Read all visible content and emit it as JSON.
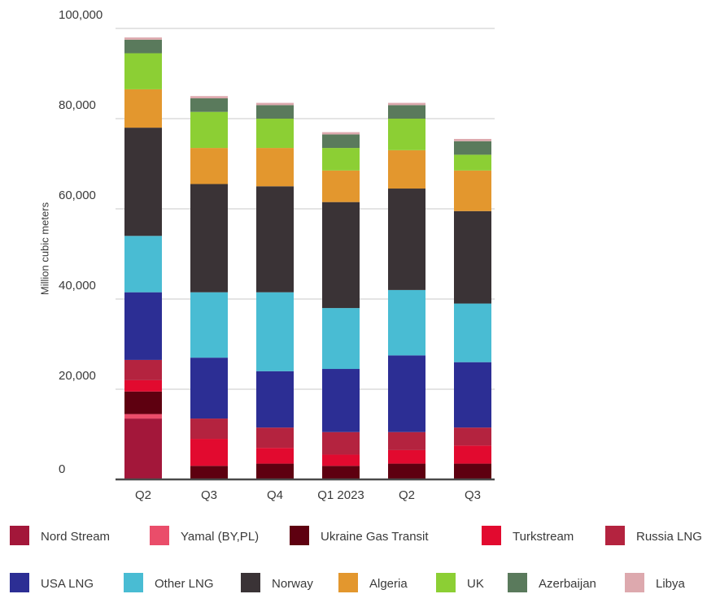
{
  "chart_data": {
    "type": "bar",
    "stacked": true,
    "title": "",
    "xlabel": "",
    "ylabel": "Million cubic meters",
    "ylim": [
      0,
      100000
    ],
    "yticks": [
      0,
      20000,
      40000,
      60000,
      80000,
      100000
    ],
    "ytick_labels": [
      "0",
      "20,000",
      "40,000",
      "60,000",
      "80,000",
      "100,000"
    ],
    "grid": true,
    "legend_position": "bottom",
    "categories": [
      "Q2",
      "Q3",
      "Q4",
      "Q1 2023",
      "Q2",
      "Q3"
    ],
    "series": [
      {
        "name": "Nord Stream",
        "color": "#a3173a",
        "values": [
          13500,
          0,
          0,
          0,
          0,
          0
        ]
      },
      {
        "name": "Yamal (BY,PL)",
        "color": "#ea4d6a",
        "values": [
          1000,
          0,
          0,
          0,
          0,
          0
        ]
      },
      {
        "name": "Ukraine Gas Transit",
        "color": "#5e0010",
        "values": [
          5000,
          3000,
          3500,
          3000,
          3500,
          3500
        ]
      },
      {
        "name": "Turkstream",
        "color": "#e20a2f",
        "values": [
          2500,
          6000,
          3500,
          2500,
          3000,
          4000
        ]
      },
      {
        "name": "Russia LNG",
        "color": "#b4233f",
        "values": [
          4500,
          4500,
          4500,
          5000,
          4000,
          4000
        ]
      },
      {
        "name": "USA LNG",
        "color": "#2c2e94",
        "values": [
          15000,
          13500,
          12500,
          14000,
          17000,
          14500
        ]
      },
      {
        "name": "Other LNG",
        "color": "#49bcd3",
        "values": [
          12500,
          14500,
          17500,
          13500,
          14500,
          13000
        ]
      },
      {
        "name": "Norway",
        "color": "#3a3336",
        "values": [
          24000,
          24000,
          23500,
          23500,
          22500,
          20500
        ]
      },
      {
        "name": "Algeria",
        "color": "#e3972e",
        "values": [
          8500,
          8000,
          8500,
          7000,
          8500,
          9000
        ]
      },
      {
        "name": "UK",
        "color": "#8ccf34",
        "values": [
          8000,
          8000,
          6500,
          5000,
          7000,
          3500
        ]
      },
      {
        "name": "Azerbaijan",
        "color": "#5a7a5c",
        "values": [
          3000,
          3000,
          3000,
          3000,
          3000,
          3000
        ]
      },
      {
        "name": "Libya",
        "color": "#dda9ae",
        "values": [
          500,
          500,
          500,
          500,
          500,
          500
        ]
      }
    ]
  }
}
